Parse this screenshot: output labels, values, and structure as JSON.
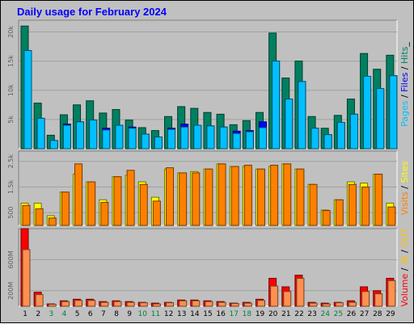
{
  "chart_data": {
    "type": "bar",
    "title": "Daily usage for February 2024",
    "days": [
      "1",
      "2",
      "3",
      "4",
      "5",
      "6",
      "7",
      "8",
      "9",
      "10",
      "11",
      "12",
      "13",
      "14",
      "15",
      "16",
      "17",
      "18",
      "19",
      "20",
      "21",
      "22",
      "23",
      "24",
      "25",
      "26",
      "27",
      "28",
      "29"
    ],
    "weekend_day_color": "#008040",
    "weekday_day_color": "#000000",
    "weekend_days": [
      3,
      4,
      10,
      11,
      17,
      18,
      24,
      25
    ],
    "panels": [
      {
        "id": "hits-files-pages",
        "ymax": 22000,
        "yticks": [
          {
            "value": 5000,
            "label": "5k"
          },
          {
            "value": 10000,
            "label": "10k"
          },
          {
            "value": 15000,
            "label": "15k"
          },
          {
            "value": 20000,
            "label": "20k"
          }
        ],
        "legend": [
          {
            "text": "Pages",
            "color": "#00c0ff"
          },
          {
            "text": " / ",
            "color": "#000000"
          },
          {
            "text": "Files",
            "color": "#0000ff"
          },
          {
            "text": " / ",
            "color": "#000000"
          },
          {
            "text": "Hits",
            "color": "#008060"
          },
          {
            "text": "_",
            "color": "#000000"
          }
        ],
        "series": [
          {
            "name": "Hits",
            "color": "#008060",
            "offset": 0,
            "values": [
              21000,
              7800,
              2300,
              5800,
              7500,
              8200,
              6100,
              6700,
              4900,
              3600,
              3100,
              5500,
              7200,
              6900,
              6200,
              5900,
              4100,
              4800,
              6200,
              19800,
              12100,
              15000,
              5500,
              3500,
              5700,
              8500,
              16300,
              13600,
              16000
            ]
          },
          {
            "name": "Files",
            "color": "#0000ff",
            "offset": 4,
            "values": [
              16800,
              5200,
              1400,
              4200,
              4600,
              4900,
              3500,
              4000,
              3700,
              2500,
              2000,
              3500,
              4200,
              4000,
              3900,
              3700,
              3000,
              3100,
              4600,
              15000,
              8500,
              11500,
              3500,
              2400,
              4500,
              5900,
              10500,
              9800,
              12500
            ]
          },
          {
            "name": "Pages",
            "color": "#00c0ff",
            "offset": 4,
            "values": [
              16800,
              5200,
              1400,
              4000,
              4600,
              4900,
              3200,
              4000,
              3500,
              2500,
              2000,
              3300,
              3700,
              4000,
              3900,
              3700,
              2600,
              2900,
              3600,
              15000,
              8500,
              11500,
              3500,
              2400,
              4500,
              5900,
              12400,
              10300,
              12500
            ]
          }
        ]
      },
      {
        "id": "sites-visits",
        "ymax": 2900,
        "yticks": [
          {
            "value": 500,
            "label": "500"
          },
          {
            "value": 1500,
            "label": "1.5k"
          },
          {
            "value": 2500,
            "label": "2.5k"
          }
        ],
        "legend": [
          {
            "text": "Visits",
            "color": "#ff8000"
          },
          {
            "text": " / ",
            "color": "#000000"
          },
          {
            "text": "Sites",
            "color": "#ffff00"
          }
        ],
        "series": [
          {
            "name": "Sites",
            "color": "#ffff00",
            "offset": 0,
            "values": [
              870,
              870,
              380,
              1300,
              2000,
              1700,
              1000,
              1900,
              1960,
              1700,
              1100,
              2200,
              2050,
              2100,
              2200,
              2400,
              2300,
              2300,
              2200,
              2300,
              2400,
              2200,
              1600,
              600,
              1000,
              1700,
              1650,
              2000,
              870
            ]
          },
          {
            "name": "Visits",
            "color": "#ff8000",
            "offset": 2,
            "values": [
              780,
              650,
              290,
              1300,
              2400,
              1700,
              900,
              1900,
              2150,
              1600,
              950,
              2250,
              2050,
              2050,
              2200,
              2400,
              2300,
              2350,
              2200,
              2350,
              2400,
              2200,
              1600,
              580,
              1000,
              1600,
              1500,
              2000,
              720
            ]
          }
        ]
      },
      {
        "id": "volume",
        "ymax": 1000,
        "yticks": [
          {
            "value": 200,
            "label": "200M"
          },
          {
            "value": 600,
            "label": "600M"
          }
        ],
        "legend": [
          {
            "text": "Volume",
            "color": "#ff0000"
          },
          {
            "text": " / ",
            "color": "#000000"
          },
          {
            "text": "IN",
            "color": "#ffc000"
          },
          {
            "text": " / ",
            "color": "#000000"
          },
          {
            "text": "OUT",
            "color": "#ffc000"
          }
        ],
        "series": [
          {
            "name": "Volume",
            "color": "#ff0000",
            "offset": 0,
            "values": [
              1000,
              180,
              30,
              70,
              90,
              90,
              60,
              70,
              60,
              50,
              40,
              50,
              80,
              80,
              70,
              60,
              40,
              50,
              90,
              360,
              250,
              400,
              50,
              40,
              50,
              70,
              250,
              200,
              360
            ]
          },
          {
            "name": "OUT",
            "color": "#ff9050",
            "offset": 2,
            "values": [
              730,
              150,
              25,
              60,
              75,
              75,
              50,
              60,
              50,
              45,
              30,
              45,
              70,
              70,
              60,
              50,
              35,
              40,
              75,
              260,
              190,
              360,
              40,
              30,
              45,
              50,
              190,
              160,
              330
            ]
          }
        ]
      }
    ]
  }
}
